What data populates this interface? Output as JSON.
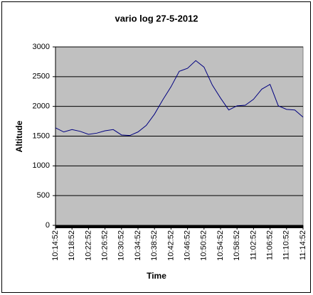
{
  "chart_data": {
    "type": "line",
    "title": "vario log 27-5-2012",
    "x_label": "Time",
    "y_label": "Altitude",
    "x": [
      "10:14:52",
      "10:16:52",
      "10:18:52",
      "10:20:52",
      "10:22:52",
      "10:24:52",
      "10:26:52",
      "10:28:52",
      "10:30:52",
      "10:32:52",
      "10:34:52",
      "10:36:52",
      "10:38:52",
      "10:40:52",
      "10:42:52",
      "10:44:52",
      "10:46:52",
      "10:48:52",
      "10:50:52",
      "10:52:52",
      "10:54:52",
      "10:56:52",
      "10:58:52",
      "11:00:52",
      "11:02:52",
      "11:04:52",
      "11:06:52",
      "11:08:52",
      "11:10:52",
      "11:12:52",
      "11:14:52"
    ],
    "values": [
      1640,
      1570,
      1610,
      1580,
      1530,
      1550,
      1590,
      1610,
      1520,
      1510,
      1570,
      1680,
      1870,
      2110,
      2330,
      2590,
      2640,
      2770,
      2660,
      2360,
      2140,
      1940,
      2010,
      2020,
      2120,
      2290,
      2370,
      2010,
      1950,
      1940,
      1820
    ],
    "color": "#000080",
    "xlim": [
      "10:14:52",
      "11:14:52"
    ],
    "xticks": [
      "10:14:52",
      "10:18:52",
      "10:22:52",
      "10:26:52",
      "10:30:52",
      "10:34:52",
      "10:38:52",
      "10:42:52",
      "10:46:52",
      "10:50:52",
      "10:54:52",
      "10:58:52",
      "11:02:52",
      "11:06:52",
      "11:10:52",
      "11:14:52"
    ],
    "ylim": [
      0,
      3000
    ],
    "yticks": [
      0,
      500,
      1000,
      1500,
      2000,
      2500,
      3000
    ],
    "grid": true
  }
}
